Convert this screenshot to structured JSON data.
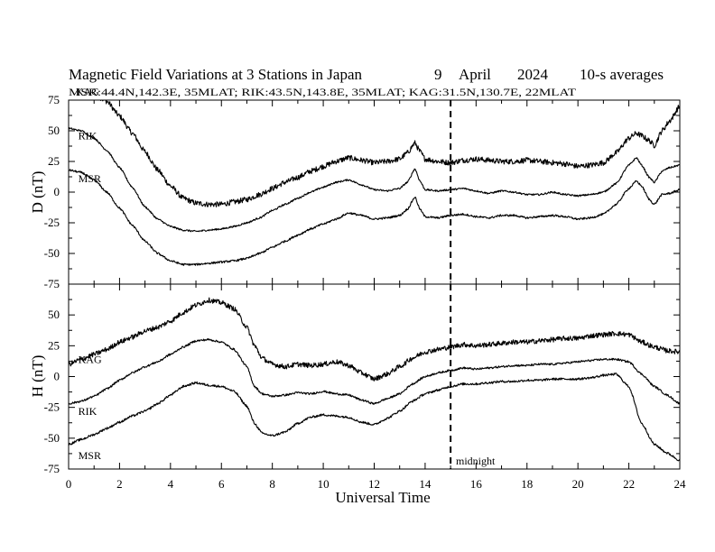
{
  "title": "Magnetic Field Variations at 3 Stations in Japan",
  "date": {
    "day": "9",
    "month": "April",
    "year": "2024"
  },
  "averaging": "10-s averages",
  "subtitle": "MSR:44.4N,142.3E, 35MLAT;  RIK:43.5N,143.8E, 35MLAT;  KAG:31.5N,130.7E, 22MLAT",
  "xlabel": "Universal Time",
  "annotation": "midnight",
  "colors": {
    "line": "#000000",
    "background": "#ffffff"
  },
  "chart_data": [
    {
      "type": "line",
      "component": "D",
      "ylabel": "D (nT)",
      "xlim": [
        0,
        24
      ],
      "ylim": [
        -75,
        75
      ],
      "xticks": [
        "0",
        "2",
        "4",
        "6",
        "8",
        "10",
        "12",
        "14",
        "16",
        "18",
        "20",
        "22",
        "24"
      ],
      "yticks": [
        "75",
        "50",
        "25",
        "0",
        "-25",
        "-50",
        "-75"
      ],
      "midnight_marker_x": 15,
      "series": [
        {
          "name": "KAG",
          "label_at": [
            0.1,
            82
          ],
          "x": [
            0,
            0.5,
            1,
            1.5,
            2,
            2.5,
            3,
            3.5,
            4,
            4.5,
            5,
            5.5,
            6,
            6.5,
            7,
            7.5,
            8,
            8.5,
            9,
            9.5,
            10,
            10.5,
            11,
            11.5,
            12,
            12.5,
            13,
            13.3,
            13.6,
            13.8,
            14,
            14.5,
            15,
            15.5,
            16,
            16.5,
            17,
            17.5,
            18,
            18.5,
            19,
            19.5,
            20,
            20.5,
            21,
            21.5,
            22,
            22.3,
            22.5,
            22.8,
            23,
            23.3,
            23.6,
            24
          ],
          "y": [
            76,
            80,
            80,
            74,
            62,
            48,
            33,
            18,
            5,
            -5,
            -9,
            -10,
            -10,
            -8,
            -6,
            -2,
            3,
            8,
            12,
            17,
            21,
            25,
            28,
            26,
            24,
            25,
            27,
            32,
            40,
            33,
            27,
            25,
            24,
            26,
            27,
            26,
            25,
            25,
            26,
            25,
            24,
            23,
            21,
            22,
            24,
            32,
            44,
            48,
            46,
            42,
            38,
            50,
            58,
            70
          ],
          "noise": 2.2
        },
        {
          "name": "RIK",
          "label_at": [
            0.2,
            46
          ],
          "x": [
            0,
            0.5,
            1,
            1.5,
            2,
            2.5,
            3,
            3.5,
            4,
            4.5,
            5,
            5.5,
            6,
            6.5,
            7,
            7.5,
            8,
            8.5,
            9,
            9.5,
            10,
            10.5,
            11,
            11.5,
            12,
            12.5,
            13,
            13.3,
            13.6,
            13.8,
            14,
            14.5,
            15,
            15.5,
            16,
            16.5,
            17,
            17.5,
            18,
            18.5,
            19,
            19.5,
            20,
            20.5,
            21,
            21.5,
            22,
            22.3,
            22.5,
            22.8,
            23,
            23.3,
            23.6,
            24
          ],
          "y": [
            52,
            50,
            44,
            34,
            20,
            4,
            -12,
            -22,
            -28,
            -31,
            -32,
            -31,
            -30,
            -28,
            -25,
            -21,
            -15,
            -10,
            -5,
            0,
            4,
            8,
            10,
            6,
            2,
            1,
            3,
            8,
            19,
            9,
            2,
            1,
            2,
            3,
            1,
            -1,
            1,
            0,
            -2,
            -2,
            0,
            -2,
            -3,
            -2,
            0,
            7,
            22,
            28,
            22,
            12,
            8,
            17,
            20,
            22
          ],
          "noise": 0.7
        },
        {
          "name": "MSR",
          "label_at": [
            0.2,
            11
          ],
          "x": [
            0,
            0.5,
            1,
            1.5,
            2,
            2.5,
            3,
            3.5,
            4,
            4.5,
            5,
            5.5,
            6,
            6.5,
            7,
            7.5,
            8,
            8.5,
            9,
            9.5,
            10,
            10.5,
            11,
            11.5,
            12,
            12.5,
            13,
            13.3,
            13.6,
            13.8,
            14,
            14.5,
            15,
            15.5,
            16,
            16.5,
            17,
            17.5,
            18,
            18.5,
            19,
            19.5,
            20,
            20.5,
            21,
            21.5,
            22,
            22.3,
            22.5,
            22.8,
            23,
            23.3,
            23.6,
            24
          ],
          "y": [
            18,
            16,
            10,
            0,
            -13,
            -27,
            -40,
            -50,
            -56,
            -59,
            -59,
            -58,
            -57,
            -56,
            -54,
            -50,
            -45,
            -40,
            -35,
            -30,
            -26,
            -22,
            -17,
            -19,
            -22,
            -21,
            -19,
            -14,
            -4,
            -14,
            -20,
            -21,
            -19,
            -18,
            -20,
            -21,
            -19,
            -19,
            -21,
            -20,
            -19,
            -20,
            -22,
            -21,
            -18,
            -10,
            3,
            9,
            5,
            -6,
            -10,
            -2,
            -1,
            2
          ],
          "noise": 0.8
        }
      ]
    },
    {
      "type": "line",
      "component": "H",
      "ylabel": "H (nT)",
      "xlim": [
        0,
        24
      ],
      "ylim": [
        -75,
        75
      ],
      "xticks": [
        "0",
        "2",
        "4",
        "6",
        "8",
        "10",
        "12",
        "14",
        "16",
        "18",
        "20",
        "22",
        "24"
      ],
      "yticks": [
        "75",
        "50",
        "25",
        "0",
        "-25",
        "-50",
        "-75"
      ],
      "midnight_marker_x": 15,
      "series": [
        {
          "name": "KAG",
          "label_at": [
            0.2,
            14
          ],
          "x": [
            0,
            0.5,
            1,
            1.5,
            2,
            2.5,
            3,
            3.5,
            4,
            4.5,
            5,
            5.5,
            6,
            6.5,
            7,
            7.3,
            7.6,
            8,
            8.5,
            9,
            9.5,
            10,
            10.5,
            11,
            11.5,
            12,
            12.5,
            13,
            13.5,
            14,
            14.5,
            15,
            15.5,
            16,
            16.5,
            17,
            17.5,
            18,
            18.5,
            19,
            19.5,
            20,
            20.5,
            21,
            21.5,
            22,
            22.5,
            23,
            23.5,
            24
          ],
          "y": [
            10,
            14,
            18,
            22,
            28,
            32,
            37,
            40,
            45,
            52,
            58,
            62,
            60,
            55,
            40,
            25,
            15,
            10,
            8,
            10,
            9,
            10,
            12,
            9,
            3,
            -2,
            2,
            8,
            15,
            20,
            22,
            24,
            26,
            25,
            26,
            27,
            28,
            28,
            29,
            30,
            31,
            31,
            33,
            34,
            35,
            34,
            28,
            24,
            21,
            20
          ],
          "noise": 2.0
        },
        {
          "name": "RIK",
          "label_at": [
            0.2,
            -28
          ],
          "x": [
            0,
            0.5,
            1,
            1.5,
            2,
            2.5,
            3,
            3.5,
            4,
            4.5,
            5,
            5.5,
            6,
            6.5,
            7,
            7.3,
            7.6,
            8,
            8.5,
            9,
            9.5,
            10,
            10.5,
            11,
            11.5,
            12,
            12.5,
            13,
            13.5,
            14,
            14.5,
            15,
            15.5,
            16,
            16.5,
            17,
            17.5,
            18,
            18.5,
            19,
            19.5,
            20,
            20.5,
            21,
            21.5,
            22,
            22.5,
            23,
            23.5,
            24
          ],
          "y": [
            -22,
            -20,
            -16,
            -10,
            -3,
            3,
            8,
            12,
            18,
            24,
            29,
            30,
            28,
            22,
            8,
            -8,
            -14,
            -16,
            -15,
            -13,
            -14,
            -12,
            -14,
            -15,
            -19,
            -22,
            -18,
            -14,
            -6,
            0,
            3,
            5,
            7,
            6,
            7,
            8,
            9,
            9,
            10,
            10,
            11,
            12,
            13,
            14,
            14,
            12,
            2,
            -8,
            -15,
            -22
          ],
          "noise": 0.8
        },
        {
          "name": "MSR",
          "label_at": [
            0.2,
            -64
          ],
          "x": [
            0,
            0.5,
            1,
            1.5,
            2,
            2.5,
            3,
            3.5,
            4,
            4.5,
            5,
            5.5,
            6,
            6.5,
            7,
            7.3,
            7.6,
            8,
            8.5,
            9,
            9.5,
            10,
            10.5,
            11,
            11.5,
            12,
            12.5,
            13,
            13.5,
            14,
            14.5,
            15,
            15.5,
            16,
            16.5,
            17,
            17.5,
            18,
            18.5,
            19,
            19.5,
            20,
            20.5,
            21,
            21.5,
            22,
            22.5,
            23,
            23.5,
            24
          ],
          "y": [
            -55,
            -51,
            -47,
            -42,
            -37,
            -32,
            -28,
            -22,
            -15,
            -8,
            -5,
            -7,
            -8,
            -12,
            -24,
            -38,
            -46,
            -48,
            -45,
            -38,
            -33,
            -31,
            -32,
            -33,
            -37,
            -39,
            -34,
            -28,
            -20,
            -14,
            -11,
            -8,
            -6,
            -6,
            -5,
            -4,
            -4,
            -3,
            -3,
            -2,
            -2,
            -2,
            -1,
            1,
            2,
            -8,
            -38,
            -55,
            -62,
            -68
          ],
          "noise": 0.9
        }
      ]
    }
  ]
}
